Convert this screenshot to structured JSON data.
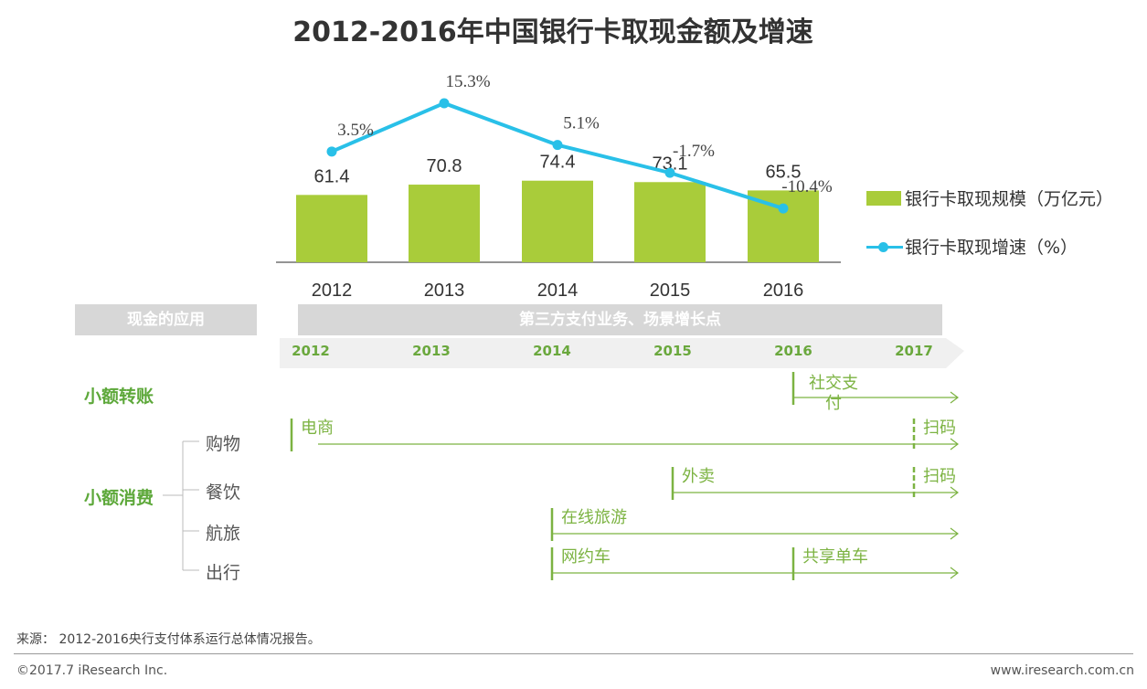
{
  "title": "2012-2016年中国银行卡取现金额及增速",
  "chart_data": {
    "type": "bar",
    "categories": [
      "2012",
      "2013",
      "2014",
      "2015",
      "2016"
    ],
    "series": [
      {
        "name": "银行卡取现规模（万亿元）",
        "type": "bar",
        "values": [
          61.4,
          70.8,
          74.4,
          73.1,
          65.5
        ],
        "labels": [
          "61.4",
          "70.8",
          "74.4",
          "73.1",
          "65.5"
        ]
      },
      {
        "name": "银行卡取现增速（%）",
        "type": "line",
        "values": [
          3.5,
          15.3,
          5.1,
          -1.7,
          -10.4
        ],
        "labels": [
          "3.5%",
          "15.3%",
          "5.1%",
          "-1.7%",
          "-10.4%"
        ]
      }
    ],
    "colors": {
      "bar": "#a9cc3a",
      "line": "#29c0e8"
    },
    "legend": "right"
  },
  "legend": {
    "bar": "银行卡取现规模（万亿元）",
    "line": "银行卡取现增速（%）"
  },
  "timeline": {
    "left_box": "现金的应用",
    "right_box": "第三方支付业务、场景增长点",
    "years": [
      "2012",
      "2013",
      "2014",
      "2015",
      "2016",
      "2017"
    ],
    "categories": [
      {
        "label": "小额转账",
        "rows": [
          {
            "sub": "",
            "events": [
              {
                "label": "社交支付",
                "start_year": 2016.0
              }
            ]
          }
        ]
      },
      {
        "label": "小额消费",
        "rows": [
          {
            "sub": "购物",
            "events": [
              {
                "label": "电商",
                "start_year": 2012.1
              },
              {
                "label": "扫码",
                "start_year": 2017.0
              }
            ]
          },
          {
            "sub": "餐饮",
            "events": [
              {
                "label": "外卖",
                "start_year": 2015.0
              },
              {
                "label": "扫码",
                "start_year": 2017.0
              }
            ]
          },
          {
            "sub": "航旅",
            "events": [
              {
                "label": "在线旅游",
                "start_year": 2014.0
              }
            ]
          },
          {
            "sub": "出行",
            "events": [
              {
                "label": "网约车",
                "start_year": 2014.0
              },
              {
                "label": "共享单车",
                "start_year": 2016.0
              }
            ]
          }
        ]
      }
    ]
  },
  "footer": {
    "source": "来源： 2012-2016央行支付体系运行总体情况报告。",
    "copyright": "©2017.7 iResearch Inc.",
    "website": "www.iresearch.com.cn"
  }
}
